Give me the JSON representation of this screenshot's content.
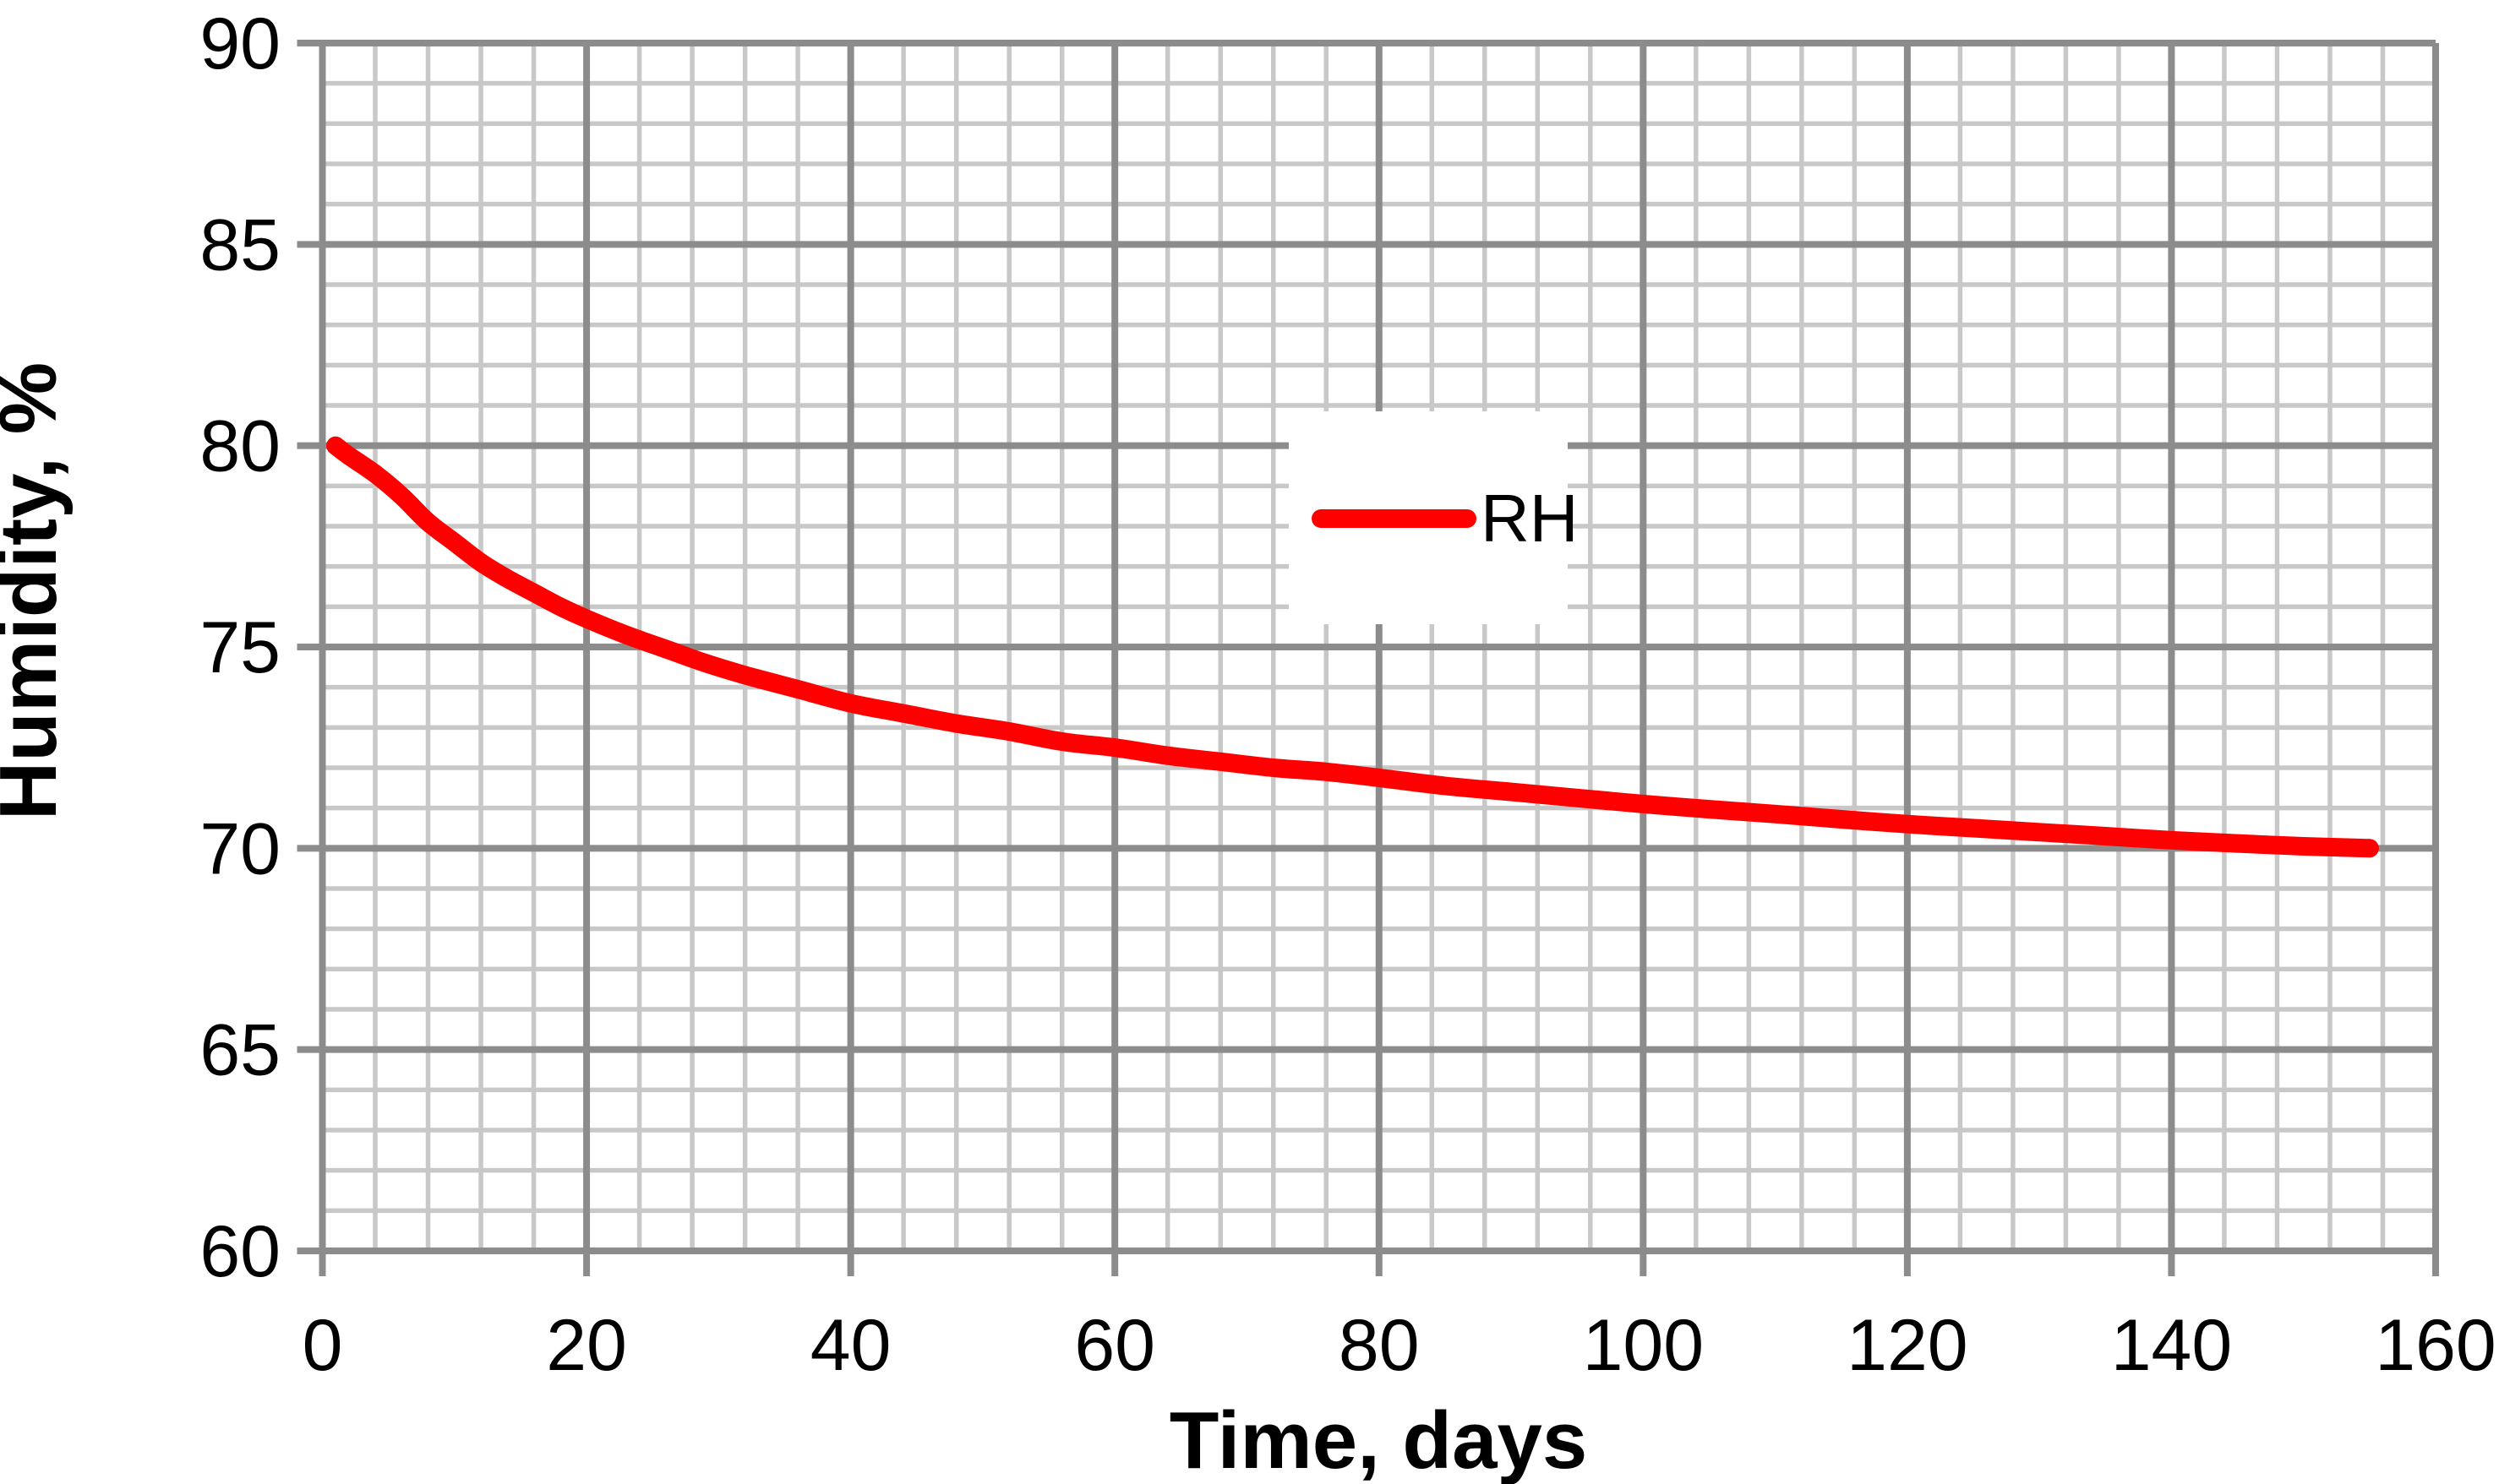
{
  "chart_data": {
    "type": "line",
    "title": "",
    "xlabel": "Time, days",
    "ylabel": "Humidity, %",
    "xlim": [
      0,
      160
    ],
    "ylim": [
      60,
      90
    ],
    "x_ticks": [
      0,
      20,
      40,
      60,
      80,
      100,
      120,
      140,
      160
    ],
    "y_ticks": [
      60,
      65,
      70,
      75,
      80,
      85,
      90
    ],
    "x_minor_step": 4,
    "y_minor_step": 1,
    "grid": "major and minor gridlines on, boxed plot area",
    "legend_position": "upper center inside plot",
    "series": [
      {
        "name": "RH",
        "color": "#FF0000",
        "points": [
          [
            1,
            80.0
          ],
          [
            2,
            79.75
          ],
          [
            4,
            79.3
          ],
          [
            6,
            78.75
          ],
          [
            8,
            78.1
          ],
          [
            10,
            77.6
          ],
          [
            12,
            77.1
          ],
          [
            14,
            76.7
          ],
          [
            16,
            76.35
          ],
          [
            18,
            76.0
          ],
          [
            20,
            75.7
          ],
          [
            23,
            75.3
          ],
          [
            26,
            74.95
          ],
          [
            29,
            74.6
          ],
          [
            32,
            74.3
          ],
          [
            36,
            73.95
          ],
          [
            40,
            73.6
          ],
          [
            44,
            73.35
          ],
          [
            48,
            73.1
          ],
          [
            52,
            72.9
          ],
          [
            56,
            72.65
          ],
          [
            60,
            72.5
          ],
          [
            64,
            72.3
          ],
          [
            68,
            72.15
          ],
          [
            72,
            72.0
          ],
          [
            76,
            71.9
          ],
          [
            80,
            71.75
          ],
          [
            85,
            71.55
          ],
          [
            90,
            71.4
          ],
          [
            95,
            71.25
          ],
          [
            100,
            71.1
          ],
          [
            105,
            70.97
          ],
          [
            110,
            70.85
          ],
          [
            115,
            70.72
          ],
          [
            120,
            70.6
          ],
          [
            125,
            70.5
          ],
          [
            130,
            70.4
          ],
          [
            135,
            70.3
          ],
          [
            140,
            70.2
          ],
          [
            145,
            70.12
          ],
          [
            150,
            70.05
          ],
          [
            155,
            70.0
          ]
        ]
      }
    ],
    "colors": {
      "major_grid": "#8C8C8C",
      "minor_grid": "#C8C8C8",
      "axis": "#8C8C8C",
      "text": "#000000",
      "background": "#FFFFFF",
      "legend_background": "#FFFFFF"
    }
  }
}
